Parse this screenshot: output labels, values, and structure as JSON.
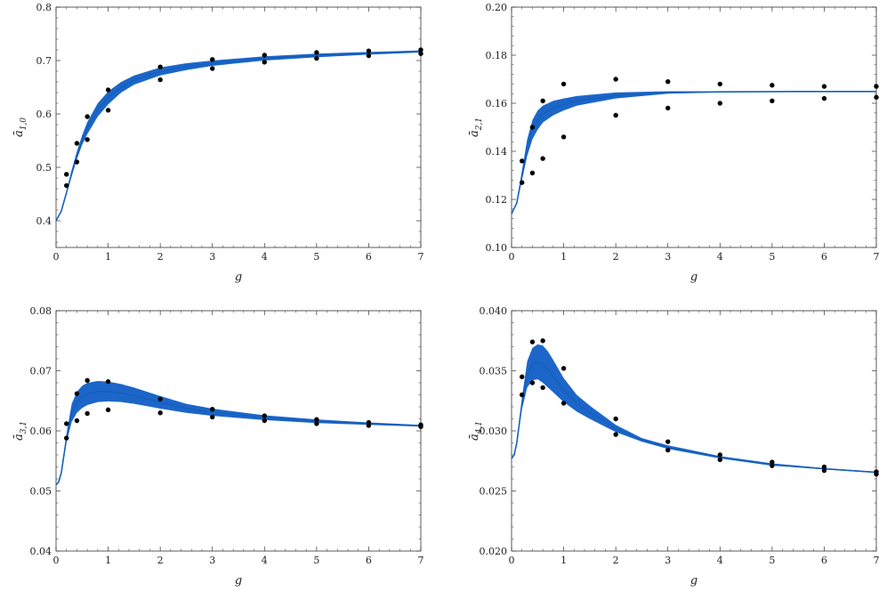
{
  "chart_data": [
    {
      "type": "scatter",
      "xlabel": "g",
      "ylabel": {
        "base": "a",
        "subscript": "1,0"
      },
      "xlim": [
        0,
        7
      ],
      "ylim": [
        0.35,
        0.8
      ],
      "xticks": [
        0,
        1,
        2,
        3,
        4,
        5,
        6,
        7
      ],
      "yticks": [
        0.4,
        0.5,
        0.6,
        0.7,
        0.8
      ],
      "ytick_labels": [
        "0.4",
        "0.5",
        "0.6",
        "0.7",
        "0.8"
      ],
      "band": {
        "x": [
          0,
          0.1,
          0.2,
          0.3,
          0.4,
          0.5,
          0.6,
          0.8,
          1.0,
          1.25,
          1.5,
          2,
          2.5,
          3,
          4,
          5,
          6,
          7
        ],
        "lower": [
          0.4,
          0.418,
          0.45,
          0.483,
          0.515,
          0.542,
          0.562,
          0.595,
          0.618,
          0.64,
          0.655,
          0.672,
          0.682,
          0.69,
          0.7,
          0.706,
          0.711,
          0.715
        ],
        "upper": [
          0.4,
          0.418,
          0.455,
          0.495,
          0.53,
          0.56,
          0.585,
          0.62,
          0.642,
          0.66,
          0.672,
          0.687,
          0.695,
          0.7,
          0.708,
          0.713,
          0.716,
          0.719
        ]
      },
      "points": [
        {
          "x": 0.2,
          "y": 0.487
        },
        {
          "x": 0.2,
          "y": 0.466
        },
        {
          "x": 0.4,
          "y": 0.545
        },
        {
          "x": 0.4,
          "y": 0.51
        },
        {
          "x": 0.6,
          "y": 0.595
        },
        {
          "x": 0.6,
          "y": 0.552
        },
        {
          "x": 1,
          "y": 0.645
        },
        {
          "x": 1,
          "y": 0.607
        },
        {
          "x": 2,
          "y": 0.688
        },
        {
          "x": 2,
          "y": 0.664
        },
        {
          "x": 3,
          "y": 0.702
        },
        {
          "x": 3,
          "y": 0.685
        },
        {
          "x": 4,
          "y": 0.71
        },
        {
          "x": 4,
          "y": 0.697
        },
        {
          "x": 5,
          "y": 0.715
        },
        {
          "x": 5,
          "y": 0.704
        },
        {
          "x": 6,
          "y": 0.718
        },
        {
          "x": 6,
          "y": 0.709
        },
        {
          "x": 7,
          "y": 0.72
        },
        {
          "x": 7,
          "y": 0.713
        }
      ]
    },
    {
      "type": "scatter",
      "xlabel": "g",
      "ylabel": {
        "base": "a",
        "subscript": "2,1"
      },
      "xlim": [
        0,
        7
      ],
      "ylim": [
        0.1,
        0.2
      ],
      "xticks": [
        0,
        1,
        2,
        3,
        4,
        5,
        6,
        7
      ],
      "yticks": [
        0.1,
        0.12,
        0.14,
        0.16,
        0.18,
        0.2
      ],
      "ytick_labels": [
        "0.10",
        "0.12",
        "0.14",
        "0.16",
        "0.18",
        "0.20"
      ],
      "band": {
        "x": [
          0,
          0.1,
          0.2,
          0.3,
          0.4,
          0.5,
          0.6,
          0.8,
          1.0,
          1.25,
          1.5,
          2,
          3,
          4,
          5,
          6,
          7
        ],
        "lower": [
          0.114,
          0.118,
          0.128,
          0.138,
          0.145,
          0.149,
          0.152,
          0.155,
          0.157,
          0.159,
          0.16,
          0.162,
          0.164,
          0.1645,
          0.1647,
          0.1648,
          0.1648
        ],
        "upper": [
          0.114,
          0.119,
          0.132,
          0.145,
          0.153,
          0.157,
          0.159,
          0.161,
          0.162,
          0.163,
          0.1635,
          0.1645,
          0.165,
          0.165,
          0.165,
          0.165,
          0.165
        ]
      },
      "points": [
        {
          "x": 0.2,
          "y": 0.136
        },
        {
          "x": 0.2,
          "y": 0.127
        },
        {
          "x": 0.4,
          "y": 0.15
        },
        {
          "x": 0.4,
          "y": 0.131
        },
        {
          "x": 0.6,
          "y": 0.161
        },
        {
          "x": 0.6,
          "y": 0.137
        },
        {
          "x": 1,
          "y": 0.168
        },
        {
          "x": 1,
          "y": 0.146
        },
        {
          "x": 2,
          "y": 0.17
        },
        {
          "x": 2,
          "y": 0.155
        },
        {
          "x": 3,
          "y": 0.169
        },
        {
          "x": 3,
          "y": 0.158
        },
        {
          "x": 4,
          "y": 0.168
        },
        {
          "x": 4,
          "y": 0.16
        },
        {
          "x": 5,
          "y": 0.1675
        },
        {
          "x": 5,
          "y": 0.161
        },
        {
          "x": 6,
          "y": 0.167
        },
        {
          "x": 6,
          "y": 0.162
        },
        {
          "x": 7,
          "y": 0.167
        },
        {
          "x": 7,
          "y": 0.1625
        }
      ]
    },
    {
      "type": "scatter",
      "xlabel": "g",
      "ylabel": {
        "base": "a",
        "subscript": "3,1"
      },
      "xlim": [
        0,
        7
      ],
      "ylim": [
        0.04,
        0.08
      ],
      "xticks": [
        0,
        1,
        2,
        3,
        4,
        5,
        6,
        7
      ],
      "yticks": [
        0.04,
        0.05,
        0.06,
        0.07,
        0.08
      ],
      "ytick_labels": [
        "0.04",
        "0.05",
        "0.06",
        "0.07",
        "0.08"
      ],
      "band": {
        "x": [
          0,
          0.05,
          0.1,
          0.2,
          0.3,
          0.4,
          0.5,
          0.6,
          0.8,
          1.0,
          1.25,
          1.5,
          2,
          2.5,
          3,
          4,
          5,
          6,
          7
        ],
        "lower": [
          0.051,
          0.0515,
          0.053,
          0.058,
          0.0615,
          0.063,
          0.0638,
          0.0643,
          0.0648,
          0.0649,
          0.0648,
          0.0645,
          0.0637,
          0.063,
          0.0625,
          0.0618,
          0.0613,
          0.061,
          0.0607
        ],
        "upper": [
          0.051,
          0.0515,
          0.053,
          0.0595,
          0.0645,
          0.0665,
          0.0675,
          0.068,
          0.0683,
          0.0682,
          0.0678,
          0.0672,
          0.0658,
          0.0645,
          0.0637,
          0.0626,
          0.0619,
          0.0614,
          0.061
        ]
      },
      "points": [
        {
          "x": 0.2,
          "y": 0.0612
        },
        {
          "x": 0.2,
          "y": 0.0588
        },
        {
          "x": 0.4,
          "y": 0.0662
        },
        {
          "x": 0.4,
          "y": 0.0617
        },
        {
          "x": 0.6,
          "y": 0.0684
        },
        {
          "x": 0.6,
          "y": 0.0629
        },
        {
          "x": 1,
          "y": 0.0682
        },
        {
          "x": 1,
          "y": 0.0635
        },
        {
          "x": 2,
          "y": 0.0653
        },
        {
          "x": 2,
          "y": 0.063
        },
        {
          "x": 3,
          "y": 0.0636
        },
        {
          "x": 3,
          "y": 0.0623
        },
        {
          "x": 4,
          "y": 0.0625
        },
        {
          "x": 4,
          "y": 0.0617
        },
        {
          "x": 5,
          "y": 0.0619
        },
        {
          "x": 5,
          "y": 0.0612
        },
        {
          "x": 6,
          "y": 0.0614
        },
        {
          "x": 6,
          "y": 0.0609
        },
        {
          "x": 7,
          "y": 0.061
        },
        {
          "x": 7,
          "y": 0.0607
        }
      ]
    },
    {
      "type": "scatter",
      "xlabel": "g",
      "ylabel": {
        "base": "a",
        "subscript": "4,1"
      },
      "xlim": [
        0,
        7
      ],
      "ylim": [
        0.02,
        0.04
      ],
      "xticks": [
        0,
        1,
        2,
        3,
        4,
        5,
        6,
        7
      ],
      "yticks": [
        0.02,
        0.025,
        0.03,
        0.035,
        0.04
      ],
      "ytick_labels": [
        "0.020",
        "0.025",
        "0.030",
        "0.035",
        "0.040"
      ],
      "band": {
        "x": [
          0,
          0.05,
          0.1,
          0.2,
          0.3,
          0.4,
          0.5,
          0.6,
          0.7,
          0.8,
          1.0,
          1.25,
          1.5,
          2,
          2.5,
          3,
          4,
          5,
          6,
          7
        ],
        "lower": [
          0.0277,
          0.028,
          0.029,
          0.0318,
          0.0336,
          0.0342,
          0.0343,
          0.034,
          0.0336,
          0.0332,
          0.0324,
          0.0316,
          0.031,
          0.0299,
          0.0291,
          0.0285,
          0.0277,
          0.0271,
          0.0268,
          0.0265
        ],
        "upper": [
          0.0277,
          0.028,
          0.029,
          0.0328,
          0.0358,
          0.0369,
          0.0372,
          0.0371,
          0.0366,
          0.0359,
          0.0344,
          0.033,
          0.0321,
          0.0305,
          0.0294,
          0.0288,
          0.0279,
          0.0273,
          0.0269,
          0.0266
        ]
      },
      "points": [
        {
          "x": 0.2,
          "y": 0.0345
        },
        {
          "x": 0.2,
          "y": 0.033
        },
        {
          "x": 0.4,
          "y": 0.0374
        },
        {
          "x": 0.4,
          "y": 0.034
        },
        {
          "x": 0.6,
          "y": 0.0375
        },
        {
          "x": 0.6,
          "y": 0.0336
        },
        {
          "x": 1,
          "y": 0.0352
        },
        {
          "x": 1,
          "y": 0.0323
        },
        {
          "x": 2,
          "y": 0.031
        },
        {
          "x": 2,
          "y": 0.0297
        },
        {
          "x": 3,
          "y": 0.0291
        },
        {
          "x": 3,
          "y": 0.0284
        },
        {
          "x": 4,
          "y": 0.028
        },
        {
          "x": 4,
          "y": 0.0276
        },
        {
          "x": 5,
          "y": 0.0274
        },
        {
          "x": 5,
          "y": 0.0271
        },
        {
          "x": 6,
          "y": 0.027
        },
        {
          "x": 6,
          "y": 0.0267
        },
        {
          "x": 7,
          "y": 0.0266
        },
        {
          "x": 7,
          "y": 0.0264
        }
      ]
    }
  ],
  "colors": {
    "band": "#1c66c9",
    "center_line": "#1560bd",
    "point": "#000000",
    "frame": "#333333"
  }
}
